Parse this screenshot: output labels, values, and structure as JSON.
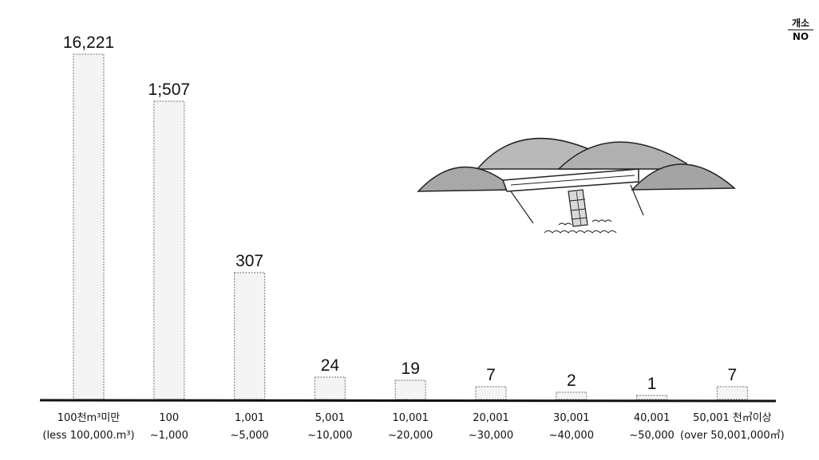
{
  "chart_data": {
    "type": "bar",
    "unit": {
      "top": "개소",
      "bottom": "NO"
    },
    "categories": [
      [
        "100천m³미만",
        "(less 100,000.m³)"
      ],
      [
        "100",
        "~1,000"
      ],
      [
        "1,001",
        "~5,000"
      ],
      [
        "5,001",
        "~10,000"
      ],
      [
        "10,001",
        "~20,000"
      ],
      [
        "20,001",
        "~30,000"
      ],
      [
        "30,001",
        "~40,000"
      ],
      [
        "40,001",
        "~50,000"
      ],
      [
        "50,001 천㎥이상",
        "(over 50,001,000㎥)"
      ]
    ],
    "values": [
      16221,
      1507,
      307,
      24,
      19,
      7,
      2,
      1,
      7
    ],
    "data_labels": [
      "16,221",
      "1;507",
      "307",
      "24",
      "19",
      "7",
      "2",
      "1",
      "7"
    ],
    "axis_scale": "broken (non-linear)",
    "grid": false,
    "legend": "none",
    "bar_color": "#f4f4f4",
    "bar_outline": "#8a8a8a"
  }
}
